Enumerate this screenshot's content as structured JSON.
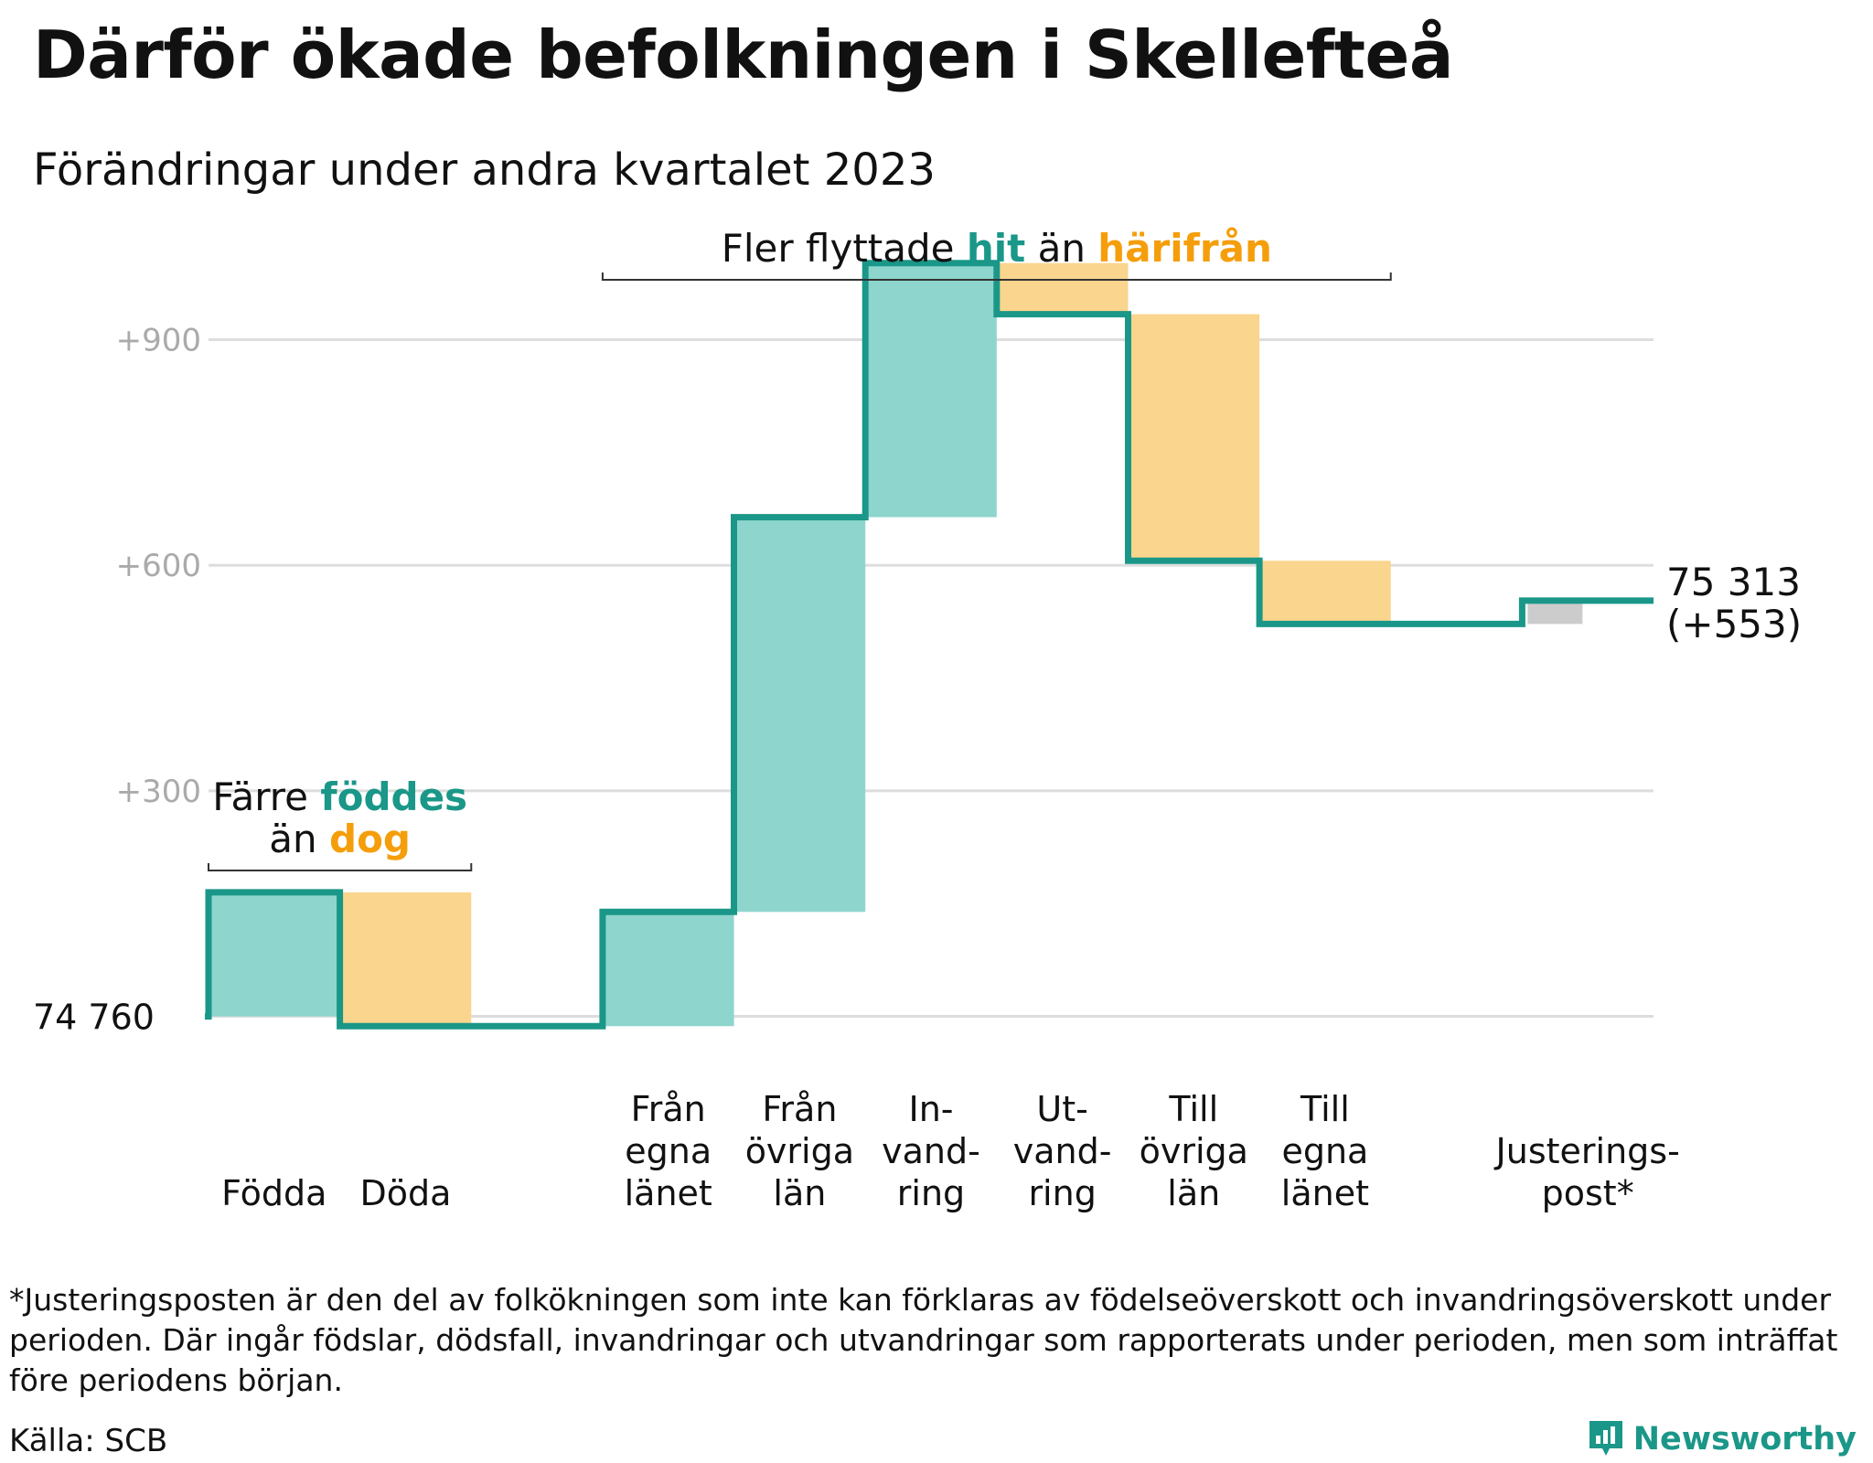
{
  "title": "Därför ökade befolkningen i Skellefteå",
  "subtitle": "Förändringar under andra kvartalet 2023",
  "colors": {
    "increase": "#8dd5cd",
    "decrease": "#fad58e",
    "adjustment": "#cccccc",
    "line": "#1a9788",
    "highlight_teal": "#1a9788",
    "highlight_orange": "#f59e0b",
    "grid": "#dddddd",
    "tick": "#aaaaaa"
  },
  "chart_data": {
    "type": "waterfall",
    "start_label": "74  760",
    "start_value": 74760,
    "end_label": "75 313",
    "end_change_label": "(+553)",
    "y_ticks": [
      {
        "value": 300,
        "label": "+300"
      },
      {
        "value": 600,
        "label": "+600"
      },
      {
        "value": 900,
        "label": "+900"
      }
    ],
    "ylim": [
      -20,
      1060
    ],
    "grid": true,
    "steps": [
      {
        "lines": [
          "Födda"
        ],
        "value": 165,
        "kind": "increase"
      },
      {
        "lines": [
          "Döda"
        ],
        "value": -178,
        "kind": "decrease"
      },
      {
        "lines": [
          ""
        ],
        "value": 0,
        "kind": "gap"
      },
      {
        "lines": [
          "Från",
          "egna",
          "länet"
        ],
        "value": 152,
        "kind": "increase"
      },
      {
        "lines": [
          "Från",
          "övriga",
          "län"
        ],
        "value": 525,
        "kind": "increase"
      },
      {
        "lines": [
          "In-",
          "vand-",
          "ring"
        ],
        "value": 338,
        "kind": "increase"
      },
      {
        "lines": [
          "Ut-",
          "vand-",
          "ring"
        ],
        "value": -68,
        "kind": "decrease"
      },
      {
        "lines": [
          "Till",
          "övriga",
          "län"
        ],
        "value": -328,
        "kind": "decrease"
      },
      {
        "lines": [
          "Till",
          "egna",
          "länet"
        ],
        "value": -84,
        "kind": "decrease"
      },
      {
        "lines": [
          ""
        ],
        "value": 0,
        "kind": "gap"
      },
      {
        "lines": [
          "Justerings-",
          "post*"
        ],
        "value": 31,
        "kind": "adjustment"
      }
    ],
    "annotations": [
      {
        "lines": [
          [
            {
              "text": "Färre ",
              "style": "plain"
            },
            {
              "text": "föddes",
              "style": "teal"
            }
          ],
          [
            {
              "text": "än ",
              "style": "plain"
            },
            {
              "text": "dog",
              "style": "orange"
            }
          ]
        ],
        "from_step": 0,
        "to_step": 1
      },
      {
        "lines": [
          [
            {
              "text": "Fler flyttade ",
              "style": "plain"
            },
            {
              "text": "hit",
              "style": "teal"
            },
            {
              "text": " än ",
              "style": "plain"
            },
            {
              "text": "härifrån",
              "style": "orange"
            }
          ]
        ],
        "from_step": 3,
        "to_step": 8
      }
    ]
  },
  "footnote": "*Justeringsposten är den del av folkökningen som inte kan förklaras av födelseöverskott och invandringsöverskott under perioden. Där ingår födslar, dödsfall, invandringar och utvandringar som rapporterats under perioden, men som inträffat före periodens början.",
  "source": "Källa: SCB",
  "brand": "Newsworthy",
  "brand_icon": "newsworthy-logo-icon"
}
